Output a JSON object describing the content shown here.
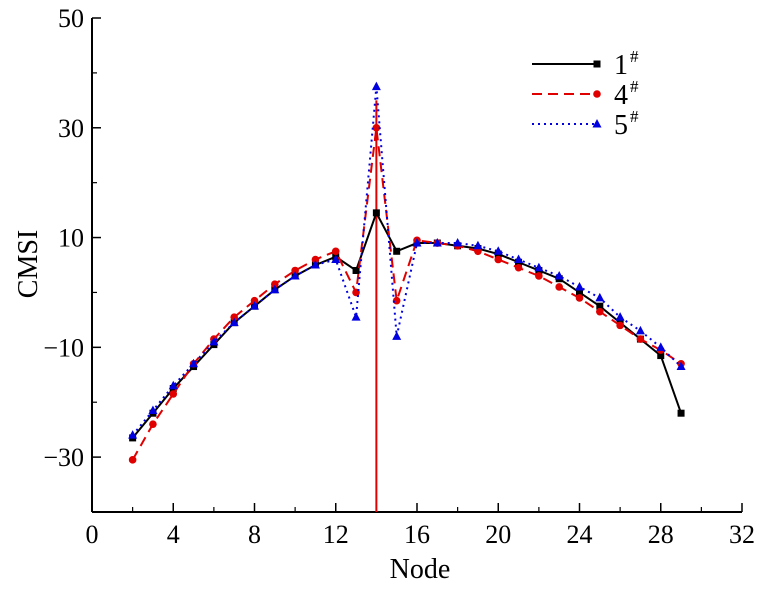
{
  "chart_data": {
    "type": "line",
    "xlabel": "Node",
    "ylabel": "CMSI",
    "xlim": [
      0,
      32
    ],
    "ylim": [
      -40,
      50
    ],
    "xticks": [
      0,
      4,
      8,
      12,
      16,
      20,
      24,
      28,
      32
    ],
    "yticks": [
      -30,
      -10,
      10,
      30,
      50
    ],
    "grid": false,
    "legend_position": "top-right",
    "marker_line": {
      "x": 14,
      "color": "#e00000"
    },
    "series": [
      {
        "name": "1",
        "name_superscript": "#",
        "color": "#000000",
        "dash": "solid",
        "marker": "square",
        "x": [
          2,
          3,
          4,
          5,
          6,
          7,
          8,
          9,
          10,
          11,
          12,
          13,
          14,
          15,
          16,
          17,
          18,
          19,
          20,
          21,
          22,
          23,
          24,
          25,
          26,
          27,
          28,
          29
        ],
        "y": [
          -26.5,
          -22,
          -17.5,
          -13.5,
          -9.5,
          -5.5,
          -2.5,
          0.5,
          3,
          5,
          6.5,
          4,
          14.5,
          7.5,
          9,
          9,
          8.5,
          8,
          7,
          5.5,
          4,
          2.5,
          0,
          -2.5,
          -5.5,
          -8.5,
          -11.5,
          -22
        ]
      },
      {
        "name": "4",
        "name_superscript": "#",
        "color": "#e00000",
        "dash": "dashed",
        "marker": "circle",
        "x": [
          2,
          3,
          4,
          5,
          6,
          7,
          8,
          9,
          10,
          11,
          12,
          13,
          14,
          15,
          16,
          17,
          18,
          19,
          20,
          21,
          22,
          23,
          24,
          25,
          26,
          27,
          28,
          29
        ],
        "y": [
          -30.5,
          -24,
          -18.5,
          -13,
          -8.5,
          -4.5,
          -1.5,
          1.5,
          4,
          6,
          7.5,
          0,
          30,
          -1.5,
          9.5,
          9,
          8.5,
          7.5,
          6,
          4.5,
          3,
          1,
          -1,
          -3.5,
          -6,
          -8.5,
          -10.5,
          -13
        ]
      },
      {
        "name": "5",
        "name_superscript": "#",
        "color": "#0000e0",
        "dash": "dotted",
        "marker": "triangle",
        "x": [
          2,
          3,
          4,
          5,
          6,
          7,
          8,
          9,
          10,
          11,
          12,
          13,
          14,
          15,
          16,
          17,
          18,
          19,
          20,
          21,
          22,
          23,
          24,
          25,
          26,
          27,
          28,
          29
        ],
        "y": [
          -26,
          -21.5,
          -17,
          -13,
          -9,
          -5.5,
          -2.5,
          0.5,
          3,
          5,
          6,
          -4.5,
          37.5,
          -8,
          9,
          9,
          9,
          8.5,
          7.5,
          6,
          4.5,
          3,
          1,
          -1,
          -4.5,
          -7,
          -10,
          -13.5
        ]
      }
    ]
  }
}
